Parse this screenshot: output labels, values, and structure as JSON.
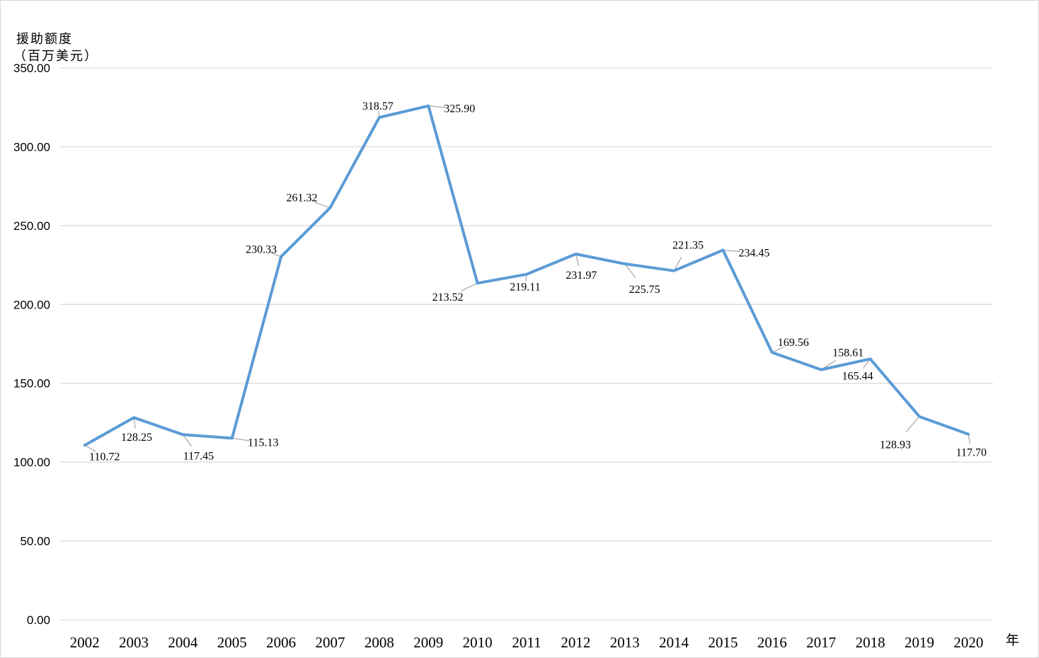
{
  "chart_data": {
    "type": "line",
    "title": "",
    "ylabel": [
      "援助额度",
      "（百万美元）"
    ],
    "xlabel": "年",
    "ylim": [
      0,
      350
    ],
    "yticks": [
      "0.00",
      "50.00",
      "100.00",
      "150.00",
      "200.00",
      "250.00",
      "300.00",
      "350.00"
    ],
    "grid": true,
    "legend": "none",
    "line_color": "#5b9bd5",
    "categories": [
      "2002",
      "2003",
      "2004",
      "2005",
      "2006",
      "2007",
      "2008",
      "2009",
      "2010",
      "2011",
      "2012",
      "2013",
      "2014",
      "2015",
      "2016",
      "2017",
      "2018",
      "2019",
      "2020"
    ],
    "values": [
      110.72,
      128.25,
      117.45,
      115.13,
      230.33,
      261.32,
      318.57,
      325.9,
      213.52,
      219.11,
      231.97,
      225.75,
      221.35,
      234.45,
      169.56,
      158.61,
      165.44,
      128.93,
      117.7
    ],
    "data_labels": [
      "110.72",
      "128.25",
      "117.45",
      "115.13",
      "230.33",
      "261.32",
      "318.57",
      "325.90",
      "213.52",
      "219.11",
      "231.97",
      "225.75",
      "221.35",
      "234.45",
      "169.56",
      "158.61",
      "165.44",
      "128.93",
      "117.70"
    ]
  }
}
